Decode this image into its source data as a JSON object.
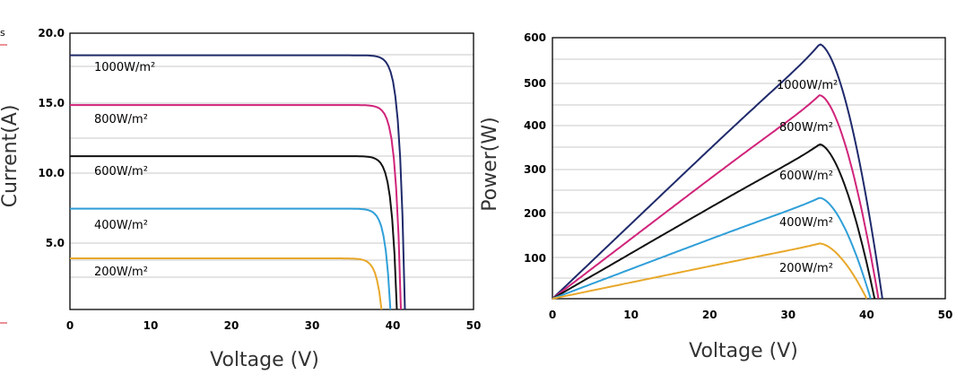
{
  "chart_data": [
    {
      "type": "line",
      "title": "",
      "xlabel": "Voltage  (V)",
      "ylabel": "Current(A)",
      "xlim": [
        0,
        50
      ],
      "ylim": [
        0,
        20
      ],
      "grid": true,
      "x_ticks": [
        "0",
        "10",
        "20",
        "30",
        "40",
        "50"
      ],
      "y_ticks": [
        "5.0",
        "10.0",
        "15.0",
        "20.0"
      ],
      "series": [
        {
          "name": "1000W/m²",
          "color": "#1f2a6b",
          "isc": 18.4,
          "voc": 41.5
        },
        {
          "name": "800W/m²",
          "color": "#d0247a",
          "isc": 14.8,
          "voc": 41.0
        },
        {
          "name": "600W/m²",
          "color": "#111111",
          "isc": 11.1,
          "voc": 40.5
        },
        {
          "name": "400W/m²",
          "color": "#2f9fd8",
          "isc": 7.3,
          "voc": 39.7
        },
        {
          "name": "200W/m²",
          "color": "#e8a82a",
          "isc": 3.7,
          "voc": 38.6
        }
      ]
    },
    {
      "type": "line",
      "title": "",
      "xlabel": "Voltage  (V)",
      "ylabel": "Power(W)",
      "xlim": [
        0,
        50
      ],
      "ylim": [
        0,
        600
      ],
      "grid": true,
      "x_ticks": [
        "0",
        "10",
        "20",
        "30",
        "40",
        "50"
      ],
      "y_ticks": [
        "100",
        "200",
        "300",
        "400",
        "500",
        "600"
      ],
      "series": [
        {
          "name": "1000W/m²",
          "color": "#1f2a6b",
          "pmax": 585,
          "vmp": 34,
          "voc": 42.0
        },
        {
          "name": "800W/m²",
          "color": "#d0247a",
          "pmax": 468,
          "vmp": 34,
          "voc": 41.5
        },
        {
          "name": "600W/m²",
          "color": "#111111",
          "pmax": 355,
          "vmp": 34,
          "voc": 41.0
        },
        {
          "name": "400W/m²",
          "color": "#2f9fd8",
          "pmax": 232,
          "vmp": 34,
          "voc": 40.5
        },
        {
          "name": "200W/m²",
          "color": "#e8a82a",
          "pmax": 127,
          "vmp": 34,
          "voc": 40.0
        }
      ]
    }
  ],
  "edge_text": "s"
}
